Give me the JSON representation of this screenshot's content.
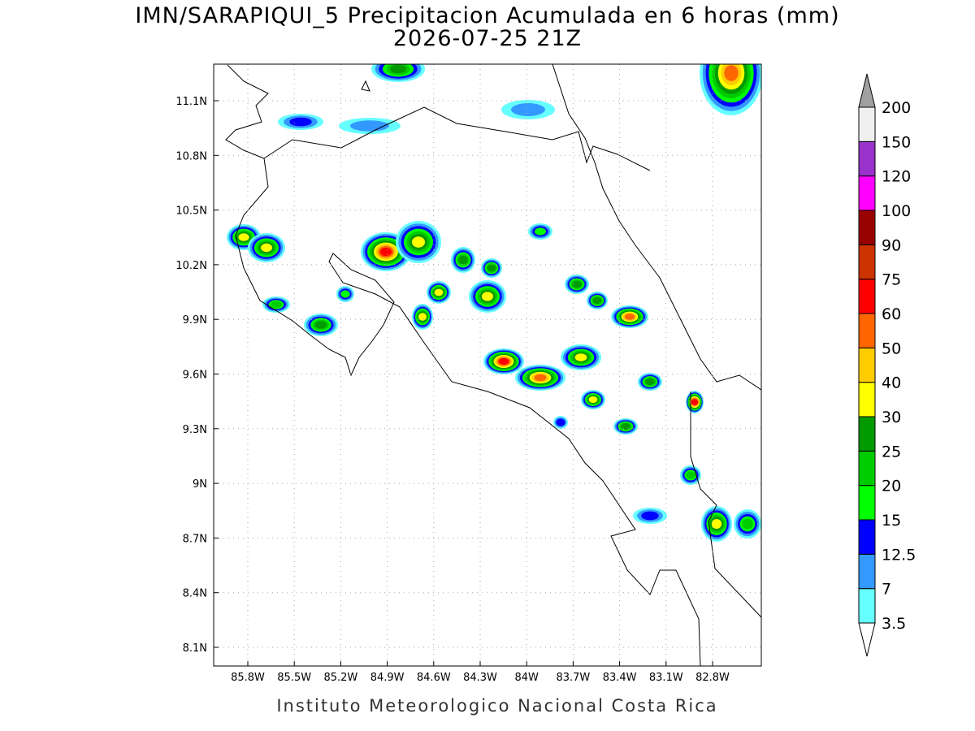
{
  "header": {
    "title": "IMN/SARAPIQUI_5 Precipitacion Acumulada en 6 horas (mm)",
    "subtitle": "2026-07-25 21Z"
  },
  "map": {
    "lon_labels": [
      "85.8W",
      "85.5W",
      "85.2W",
      "84.9W",
      "84.6W",
      "84.3W",
      "84W",
      "83.7W",
      "83.4W",
      "83.1W",
      "82.8W"
    ],
    "lat_labels": [
      "11.1N",
      "10.8N",
      "10.5N",
      "10.2N",
      "9.9N",
      "9.6N",
      "9.3N",
      "9N",
      "8.7N",
      "8.4N",
      "8.1N"
    ]
  },
  "colorbar": {
    "levels": [
      3.5,
      7,
      12.5,
      15,
      20,
      25,
      30,
      40,
      50,
      60,
      75,
      90,
      100,
      120,
      150,
      200
    ],
    "colors": [
      "#ffffff",
      "#66ffff",
      "#3399ff",
      "#0000ff",
      "#00ff00",
      "#00cc00",
      "#009900",
      "#ffff00",
      "#ffcc00",
      "#ff6600",
      "#ff0000",
      "#cc3300",
      "#990000",
      "#ff00ff",
      "#9933cc",
      "#f0f0f0",
      "#a0a0a0"
    ]
  },
  "footer": "Instituto Meteorologico Nacional Costa Rica"
}
